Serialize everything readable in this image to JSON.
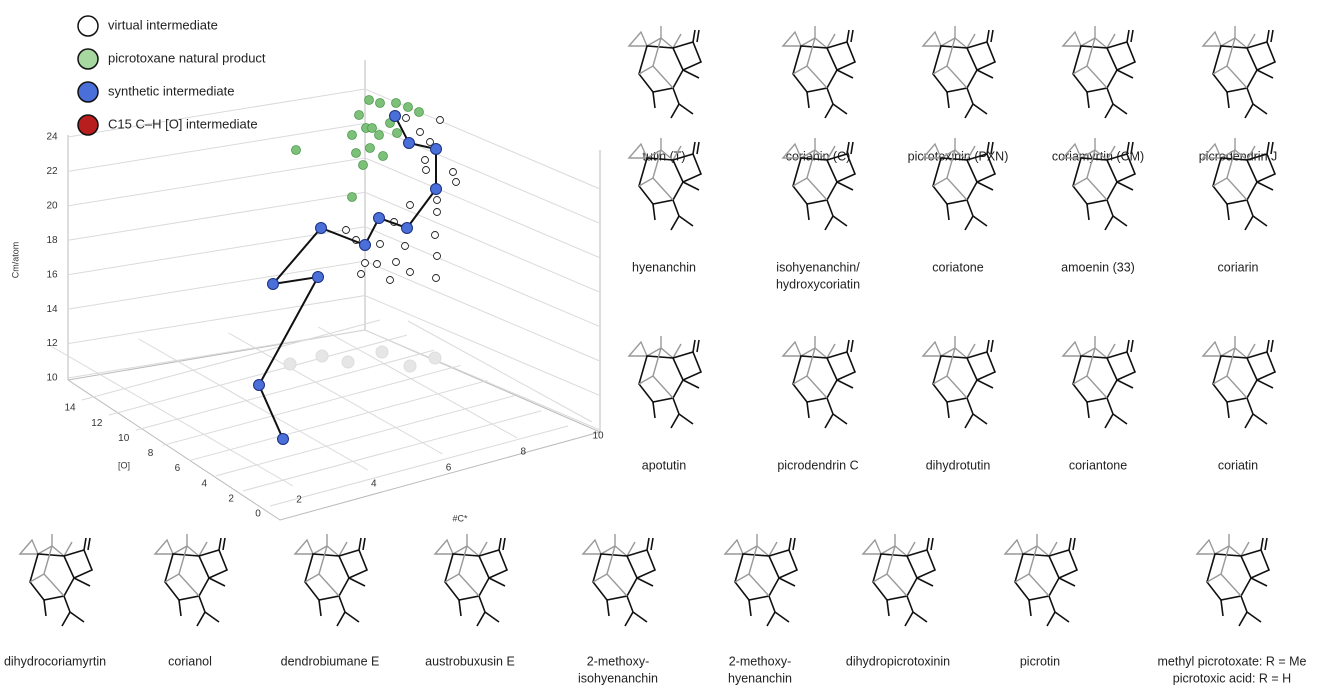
{
  "legend": [
    {
      "label": "virtual intermediate",
      "color": "#ffffff"
    },
    {
      "label": "picrotoxane natural product",
      "color": "#a6d8a0"
    },
    {
      "label": "synthetic intermediate",
      "color": "#4a6fd8"
    },
    {
      "label": "C15 C–H [O] intermediate",
      "color": "#b81e1e"
    }
  ],
  "plot": {
    "z_label": "Cm/atom",
    "y_label": "[O]",
    "x_label": "#C*",
    "zticks": [
      10,
      12,
      14,
      16,
      18,
      20,
      22,
      24
    ],
    "yticks": [
      0,
      2,
      4,
      6,
      8,
      10,
      12,
      14
    ],
    "xticks": [
      2,
      4,
      6,
      8,
      10
    ]
  },
  "compounds": [
    {
      "name": [
        "tutin (T)"
      ]
    },
    {
      "name": [
        "corianin (C)"
      ]
    },
    {
      "name": [
        "picrotoxinin (PXN)"
      ]
    },
    {
      "name": [
        "coriamyrtin (CM)"
      ]
    },
    {
      "name": [
        "picrodendrin J"
      ]
    },
    {
      "name": [
        "hyenanchin"
      ]
    },
    {
      "name": [
        "isohyenanchin/",
        "hydroxycoriatin"
      ]
    },
    {
      "name": [
        "coriatone"
      ]
    },
    {
      "name": [
        "amoenin (33)"
      ]
    },
    {
      "name": [
        "coriarin"
      ]
    },
    {
      "name": [
        "apotutin"
      ]
    },
    {
      "name": [
        "picrodendrin C"
      ]
    },
    {
      "name": [
        "dihydrotutin"
      ]
    },
    {
      "name": [
        "coriantone"
      ]
    },
    {
      "name": [
        "coriatin"
      ]
    },
    {
      "name": [
        "dihydrocoriamyrtin"
      ]
    },
    {
      "name": [
        "corianol"
      ]
    },
    {
      "name": [
        "dendrobiumane E"
      ]
    },
    {
      "name": [
        "austrobuxusin E"
      ]
    },
    {
      "name": [
        "2-methoxy-",
        "isohyenanchin"
      ]
    },
    {
      "name": [
        "2-methoxy-",
        "hyenanchin"
      ]
    },
    {
      "name": [
        "dihydropicrotoxinin"
      ]
    },
    {
      "name": [
        "picrotin"
      ]
    },
    {
      "name": [
        "methyl picrotoxate: R = Me",
        "picrotoxic acid: R = H"
      ]
    }
  ]
}
